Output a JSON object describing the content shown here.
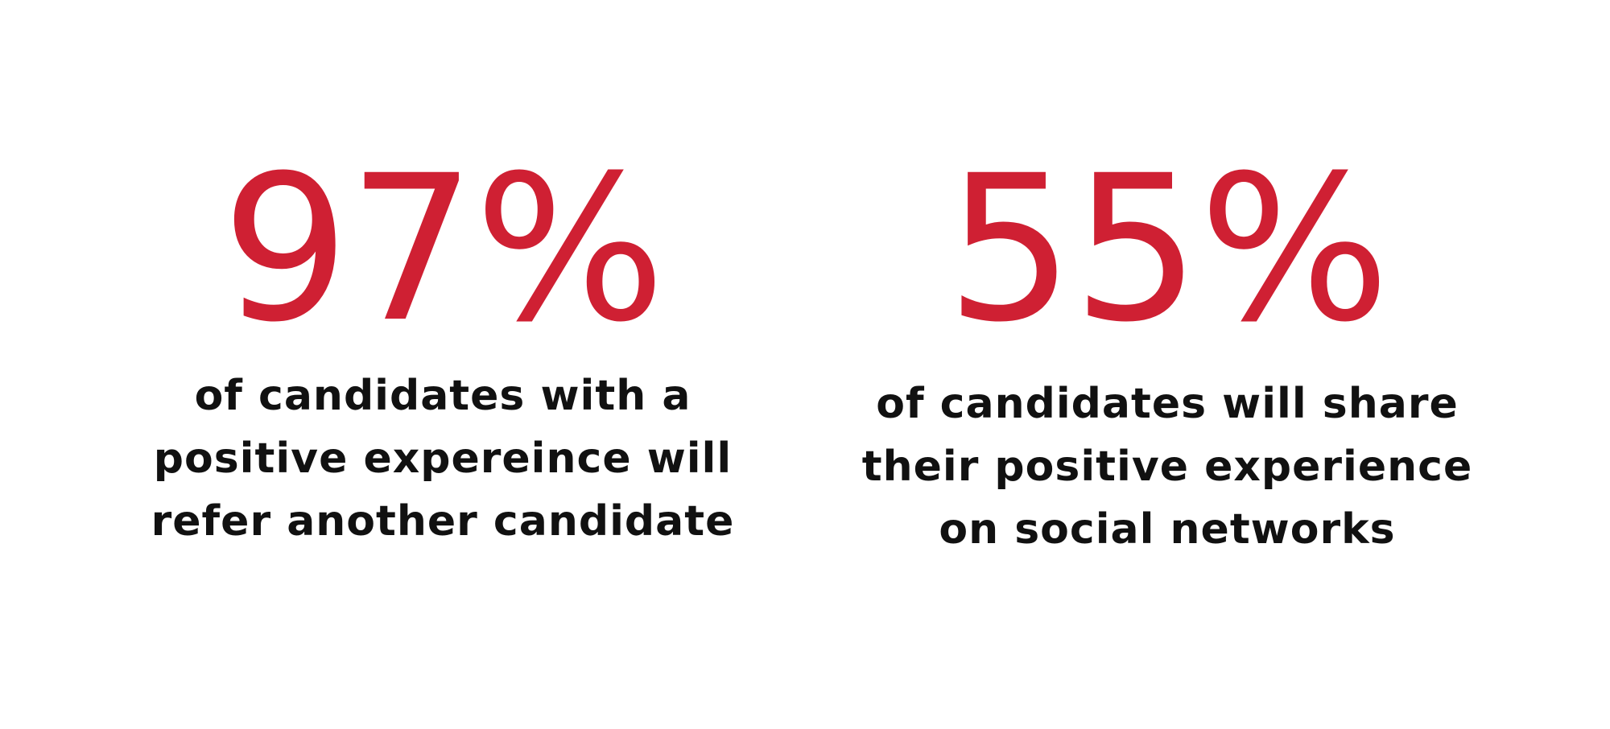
{
  "theme": {
    "accent": "#cf2033",
    "text": "#111111",
    "background": "#ffffff"
  },
  "stats": [
    {
      "value": "97%",
      "caption_lines": [
        "of candidates with a",
        "positive expereince will",
        "refer another candidate"
      ]
    },
    {
      "value": "55%",
      "caption_lines": [
        "of candidates will share",
        "their positive experience",
        "on social networks"
      ]
    }
  ]
}
